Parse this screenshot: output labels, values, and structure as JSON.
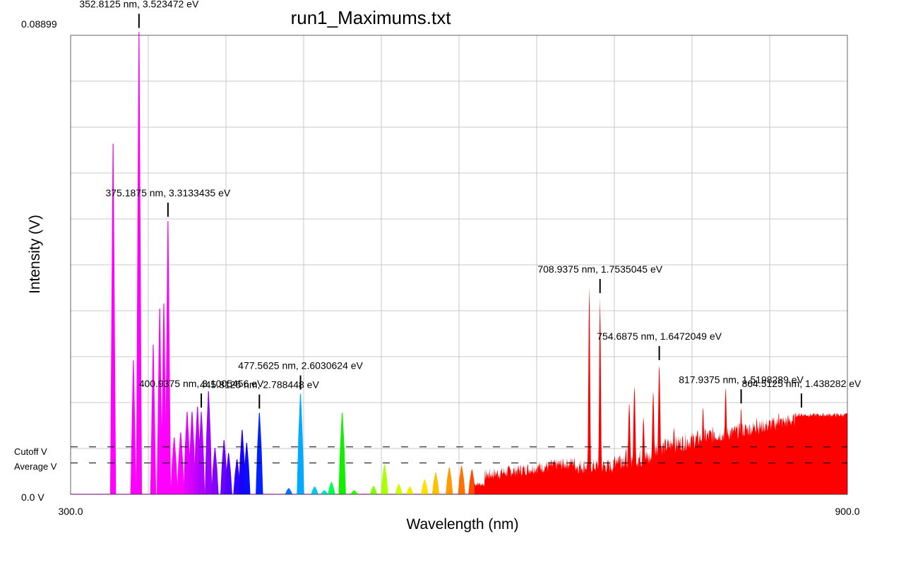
{
  "chart_data": {
    "type": "area",
    "title": "run1_Maximums.txt",
    "xlabel": "Wavelength (nm)",
    "ylabel": "Intensity (V)",
    "xlim": [
      300.0,
      900.0
    ],
    "ylim": [
      0.0,
      0.08899
    ],
    "x_tick_labels": [
      "300.0",
      "900.0"
    ],
    "y_top_label": "0.08899",
    "y_bottom_label": "0.0 V",
    "grid": true,
    "reference_lines": [
      {
        "name": "Cutoff V",
        "value": 0.0092
      },
      {
        "name": "Average V",
        "value": 0.0061
      }
    ],
    "peaks": [
      {
        "x": 332.8,
        "y": 0.068,
        "color": "#ff00ff"
      },
      {
        "x": 348.5,
        "y": 0.026,
        "color": "#ff00ff"
      },
      {
        "x": 352.8125,
        "y": 0.0896,
        "color": "#ff00ff"
      },
      {
        "x": 363.8,
        "y": 0.029,
        "color": "#ff00ff"
      },
      {
        "x": 368.8,
        "y": 0.036,
        "color": "#ff00ff"
      },
      {
        "x": 372.0,
        "y": 0.037,
        "color": "#ff00ff"
      },
      {
        "x": 375.1875,
        "y": 0.053,
        "color": "#ff00ff"
      },
      {
        "x": 380.0,
        "y": 0.011,
        "color": "#ff00ff"
      },
      {
        "x": 385.0,
        "y": 0.012,
        "color": "#ff00ff"
      },
      {
        "x": 390.0,
        "y": 0.016,
        "color": "#e400ff"
      },
      {
        "x": 393.8,
        "y": 0.016,
        "color": "#d400ff"
      },
      {
        "x": 398.0,
        "y": 0.017,
        "color": "#bf00ff"
      },
      {
        "x": 400.9375,
        "y": 0.016,
        "color": "#b000ff"
      },
      {
        "x": 406.5,
        "y": 0.02,
        "color": "#9a00ff"
      },
      {
        "x": 411.5,
        "y": 0.009,
        "color": "#8600ff"
      },
      {
        "x": 418.5,
        "y": 0.0105,
        "color": "#6a00ff"
      },
      {
        "x": 422.0,
        "y": 0.008,
        "color": "#5000ff"
      },
      {
        "x": 428.5,
        "y": 0.0068,
        "color": "#3000ff"
      },
      {
        "x": 432.5,
        "y": 0.0125,
        "color": "#1a00ff"
      },
      {
        "x": 436.0,
        "y": 0.01,
        "color": "#0a0cff"
      },
      {
        "x": 445.8125,
        "y": 0.0158,
        "color": "#0022ff"
      },
      {
        "x": 468.5,
        "y": 0.0012,
        "color": "#0070ff"
      },
      {
        "x": 477.5625,
        "y": 0.0195,
        "color": "#00aaff"
      },
      {
        "x": 488.5,
        "y": 0.0015,
        "color": "#00c8f0"
      },
      {
        "x": 496.0,
        "y": 0.0008,
        "color": "#00e0d0"
      },
      {
        "x": 501.5,
        "y": 0.0024,
        "color": "#00ff55"
      },
      {
        "x": 509.8,
        "y": 0.0158,
        "color": "#11ee00"
      },
      {
        "x": 519.0,
        "y": 0.0008,
        "color": "#33ff00"
      },
      {
        "x": 534.0,
        "y": 0.0016,
        "color": "#7fff00"
      },
      {
        "x": 542.5,
        "y": 0.0058,
        "color": "#aaff00"
      },
      {
        "x": 553.5,
        "y": 0.002,
        "color": "#ccff00"
      },
      {
        "x": 562.0,
        "y": 0.0015,
        "color": "#f0ee00"
      },
      {
        "x": 573.5,
        "y": 0.0029,
        "color": "#ffe000"
      },
      {
        "x": 582.0,
        "y": 0.0042,
        "color": "#ffc000"
      },
      {
        "x": 592.5,
        "y": 0.0052,
        "color": "#ff9a00"
      },
      {
        "x": 602.0,
        "y": 0.0055,
        "color": "#ff7000"
      },
      {
        "x": 610.0,
        "y": 0.0048,
        "color": "#ff4a00"
      }
    ],
    "red_band": {
      "x_start": 612.0,
      "x_end": 900.0,
      "color": "#ff0000",
      "peaks": [
        {
          "x": 700.6,
          "y": 0.0405
        },
        {
          "x": 708.9375,
          "y": 0.0382
        },
        {
          "x": 731.5,
          "y": 0.0178
        },
        {
          "x": 735.5,
          "y": 0.021
        },
        {
          "x": 742.5,
          "y": 0.015
        },
        {
          "x": 750.0,
          "y": 0.02
        },
        {
          "x": 754.6875,
          "y": 0.0252
        },
        {
          "x": 766.0,
          "y": 0.013
        },
        {
          "x": 788.5,
          "y": 0.017
        },
        {
          "x": 797.0,
          "y": 0.0124
        },
        {
          "x": 806.0,
          "y": 0.0208
        },
        {
          "x": 817.9375,
          "y": 0.0168
        },
        {
          "x": 830.0,
          "y": 0.015
        },
        {
          "x": 847.0,
          "y": 0.016
        },
        {
          "x": 864.5,
          "y": 0.016
        }
      ]
    },
    "annotations": [
      {
        "text": "352.8125 nm, 3.523472 eV",
        "x": 352.8125,
        "y": 0.0896
      },
      {
        "text": "375.1875 nm, 3.3133435 eV",
        "x": 375.1875,
        "y": 0.053
      },
      {
        "text": "400.9375 nm, 3.1005456 eV",
        "x": 400.9375,
        "y": 0.016
      },
      {
        "text": "445.8125 nm, 2.788448 eV",
        "x": 445.8125,
        "y": 0.0158
      },
      {
        "text": "477.5625 nm, 2.6030624 eV",
        "x": 477.5625,
        "y": 0.0195
      },
      {
        "text": "708.9375 nm, 1.7535045 eV",
        "x": 708.9375,
        "y": 0.0382
      },
      {
        "text": "754.6875 nm, 1.6472049 eV",
        "x": 754.6875,
        "y": 0.0252
      },
      {
        "text": "817.9375 nm, 1.5198289 eV",
        "x": 817.9375,
        "y": 0.0168
      },
      {
        "text": "864.5125 nm, 1.438282 eV",
        "x": 864.5125,
        "y": 0.016
      }
    ]
  }
}
